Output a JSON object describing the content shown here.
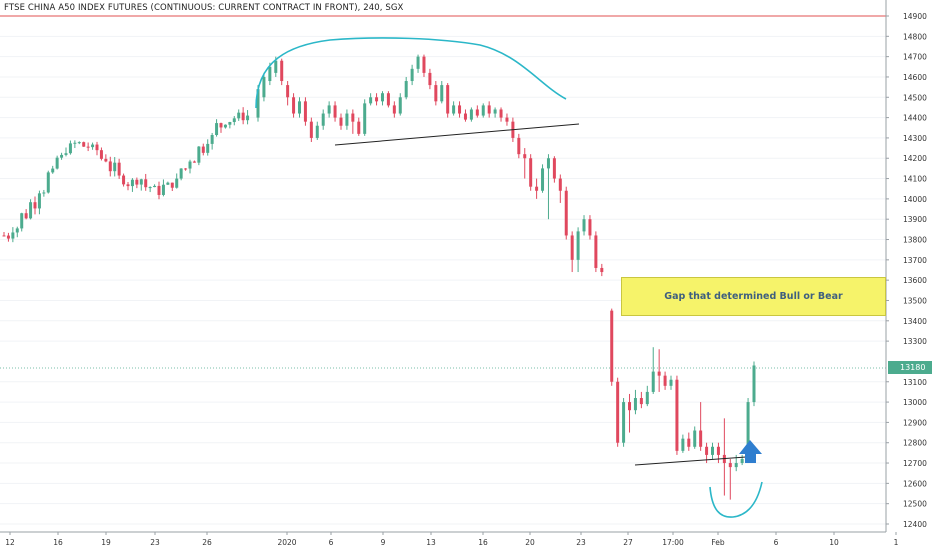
{
  "header": {
    "title": "FTSE CHINA A50 INDEX FUTURES (CONTINUOUS: CURRENT CONTRACT IN FRONT), 240, SGX"
  },
  "annotation": {
    "gap_label": "Gap that determined Bull or Bear"
  },
  "last_price": "13180",
  "colors": {
    "up": "#4cab8e",
    "down": "#e0485e",
    "trendline": "#222222",
    "arc": "#2bb7c8",
    "resistance": "#e05050",
    "callout_fill": "#f6f36a",
    "arrow": "#2f7ecf"
  },
  "chart_data": {
    "type": "candlestick",
    "title": "FTSE CHINA A50 INDEX FUTURES (CONTINUOUS: CURRENT CONTRACT IN FRONT), 240, SGX",
    "xlabel": "",
    "ylabel": "",
    "ylim": [
      12360,
      14960
    ],
    "y_ticks": [
      12400,
      12500,
      12600,
      12700,
      12800,
      12900,
      13000,
      13100,
      13180,
      13300,
      13400,
      13500,
      13600,
      13700,
      13800,
      13900,
      14000,
      14100,
      14200,
      14300,
      14400,
      14500,
      14600,
      14700,
      14800,
      14900
    ],
    "x_ticks": [
      "12",
      "16",
      "19",
      "23",
      "26",
      "2020",
      "6",
      "9",
      "13",
      "16",
      "20",
      "23",
      "27",
      "17:00",
      "Feb",
      "6",
      "10",
      "1"
    ],
    "resistance_level": 14900,
    "last_price": 13180,
    "candles": [
      {
        "o": 14400,
        "c": 14540,
        "h": 14560,
        "l": 14380
      },
      {
        "o": 14500,
        "c": 14600,
        "h": 14620,
        "l": 14480
      },
      {
        "o": 14580,
        "c": 14650,
        "h": 14670,
        "l": 14560
      },
      {
        "o": 14620,
        "c": 14680,
        "h": 14700,
        "l": 14600
      },
      {
        "o": 14680,
        "c": 14580,
        "h": 14690,
        "l": 14560
      },
      {
        "o": 14560,
        "c": 14500,
        "h": 14580,
        "l": 14460
      },
      {
        "o": 14500,
        "c": 14420,
        "h": 14520,
        "l": 14400
      },
      {
        "o": 14420,
        "c": 14480,
        "h": 14500,
        "l": 14400
      },
      {
        "o": 14480,
        "c": 14380,
        "h": 14500,
        "l": 14360
      },
      {
        "o": 14380,
        "c": 14300,
        "h": 14400,
        "l": 14280
      },
      {
        "o": 14300,
        "c": 14360,
        "h": 14380,
        "l": 14290
      },
      {
        "o": 14360,
        "c": 14420,
        "h": 14440,
        "l": 14340
      },
      {
        "o": 14420,
        "c": 14460,
        "h": 14480,
        "l": 14400
      },
      {
        "o": 14460,
        "c": 14400,
        "h": 14480,
        "l": 14380
      },
      {
        "o": 14400,
        "c": 14360,
        "h": 14420,
        "l": 14340
      },
      {
        "o": 14360,
        "c": 14420,
        "h": 14440,
        "l": 14340
      },
      {
        "o": 14420,
        "c": 14380,
        "h": 14440,
        "l": 14320
      },
      {
        "o": 14380,
        "c": 14320,
        "h": 14400,
        "l": 14310
      },
      {
        "o": 14320,
        "c": 14470,
        "h": 14490,
        "l": 14310
      },
      {
        "o": 14470,
        "c": 14500,
        "h": 14520,
        "l": 14460
      },
      {
        "o": 14500,
        "c": 14480,
        "h": 14520,
        "l": 14460
      },
      {
        "o": 14480,
        "c": 14520,
        "h": 14530,
        "l": 14460
      },
      {
        "o": 14520,
        "c": 14460,
        "h": 14530,
        "l": 14450
      },
      {
        "o": 14460,
        "c": 14420,
        "h": 14480,
        "l": 14400
      },
      {
        "o": 14420,
        "c": 14500,
        "h": 14520,
        "l": 14410
      },
      {
        "o": 14500,
        "c": 14580,
        "h": 14600,
        "l": 14490
      },
      {
        "o": 14580,
        "c": 14640,
        "h": 14660,
        "l": 14560
      },
      {
        "o": 14640,
        "c": 14700,
        "h": 14710,
        "l": 14620
      },
      {
        "o": 14700,
        "c": 14620,
        "h": 14710,
        "l": 14600
      },
      {
        "o": 14620,
        "c": 14560,
        "h": 14640,
        "l": 14540
      },
      {
        "o": 14560,
        "c": 14480,
        "h": 14580,
        "l": 14460
      },
      {
        "o": 14480,
        "c": 14560,
        "h": 14580,
        "l": 14470
      },
      {
        "o": 14560,
        "c": 14420,
        "h": 14570,
        "l": 14400
      },
      {
        "o": 14420,
        "c": 14460,
        "h": 14480,
        "l": 14410
      },
      {
        "o": 14460,
        "c": 14420,
        "h": 14480,
        "l": 14400
      },
      {
        "o": 14420,
        "c": 14390,
        "h": 14440,
        "l": 14380
      },
      {
        "o": 14390,
        "c": 14440,
        "h": 14450,
        "l": 14380
      },
      {
        "o": 14440,
        "c": 14410,
        "h": 14460,
        "l": 14400
      },
      {
        "o": 14410,
        "c": 14460,
        "h": 14470,
        "l": 14400
      },
      {
        "o": 14460,
        "c": 14420,
        "h": 14480,
        "l": 14400
      },
      {
        "o": 14420,
        "c": 14440,
        "h": 14450,
        "l": 14400
      },
      {
        "o": 14440,
        "c": 14400,
        "h": 14450,
        "l": 14380
      },
      {
        "o": 14400,
        "c": 14380,
        "h": 14420,
        "l": 14360
      },
      {
        "o": 14380,
        "c": 14300,
        "h": 14400,
        "l": 14280
      },
      {
        "o": 14300,
        "c": 14220,
        "h": 14320,
        "l": 14200
      },
      {
        "o": 14220,
        "c": 14200,
        "h": 14250,
        "l": 14100
      },
      {
        "o": 14200,
        "c": 14060,
        "h": 14220,
        "l": 14040
      },
      {
        "o": 14060,
        "c": 14040,
        "h": 14100,
        "l": 14000
      },
      {
        "o": 14040,
        "c": 14150,
        "h": 14170,
        "l": 14030
      },
      {
        "o": 14150,
        "c": 14200,
        "h": 14220,
        "l": 13900
      },
      {
        "o": 14200,
        "c": 14100,
        "h": 14210,
        "l": 14080
      },
      {
        "o": 14100,
        "c": 14040,
        "h": 14120,
        "l": 13980
      },
      {
        "o": 14040,
        "c": 13820,
        "h": 14060,
        "l": 13800
      },
      {
        "o": 13820,
        "c": 13700,
        "h": 13840,
        "l": 13640
      },
      {
        "o": 13700,
        "c": 13840,
        "h": 13860,
        "l": 13640
      },
      {
        "o": 13840,
        "c": 13900,
        "h": 13920,
        "l": 13820
      },
      {
        "o": 13900,
        "c": 13820,
        "h": 13920,
        "l": 13800
      },
      {
        "o": 13820,
        "c": 13660,
        "h": 13840,
        "l": 13640
      },
      {
        "o": 13660,
        "c": 13640,
        "h": 13680,
        "l": 13620
      },
      {
        "o": 13450,
        "c": 13100,
        "h": 13460,
        "l": 13080
      },
      {
        "o": 13100,
        "c": 12800,
        "h": 13120,
        "l": 12780
      },
      {
        "o": 12800,
        "c": 13000,
        "h": 13020,
        "l": 12780
      },
      {
        "o": 13000,
        "c": 12960,
        "h": 13040,
        "l": 12850
      },
      {
        "o": 12960,
        "c": 13020,
        "h": 13060,
        "l": 12940
      },
      {
        "o": 13020,
        "c": 12990,
        "h": 13050,
        "l": 12970
      },
      {
        "o": 12990,
        "c": 13050,
        "h": 13080,
        "l": 12980
      },
      {
        "o": 13050,
        "c": 13150,
        "h": 13270,
        "l": 13040
      },
      {
        "o": 13150,
        "c": 13130,
        "h": 13260,
        "l": 13050
      },
      {
        "o": 13130,
        "c": 13080,
        "h": 13150,
        "l": 13060
      },
      {
        "o": 13080,
        "c": 13110,
        "h": 13130,
        "l": 13060
      },
      {
        "o": 13110,
        "c": 12760,
        "h": 13130,
        "l": 12740
      },
      {
        "o": 12760,
        "c": 12820,
        "h": 12840,
        "l": 12750
      },
      {
        "o": 12820,
        "c": 12780,
        "h": 12850,
        "l": 12760
      },
      {
        "o": 12780,
        "c": 12860,
        "h": 12880,
        "l": 12770
      },
      {
        "o": 12860,
        "c": 12780,
        "h": 13000,
        "l": 12760
      },
      {
        "o": 12780,
        "c": 12740,
        "h": 12800,
        "l": 12700
      },
      {
        "o": 12740,
        "c": 12780,
        "h": 12800,
        "l": 12720
      },
      {
        "o": 12780,
        "c": 12740,
        "h": 12800,
        "l": 12700
      },
      {
        "o": 12740,
        "c": 12700,
        "h": 12920,
        "l": 12540
      },
      {
        "o": 12700,
        "c": 12680,
        "h": 12720,
        "l": 12520
      },
      {
        "o": 12680,
        "c": 12700,
        "h": 12740,
        "l": 12660
      },
      {
        "o": 12700,
        "c": 12720,
        "h": 12740,
        "l": 12690
      },
      {
        "o": 12720,
        "c": 13000,
        "h": 13020,
        "l": 12700
      },
      {
        "o": 13000,
        "c": 13180,
        "h": 13200,
        "l": 12980
      }
    ]
  }
}
